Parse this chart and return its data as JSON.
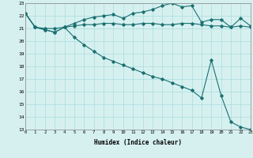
{
  "xlabel": "Humidex (Indice chaleur)",
  "bg_color": "#d6f0f0",
  "line_color": "#1a7070",
  "xlim": [
    0,
    23
  ],
  "ylim": [
    13,
    23
  ],
  "xticks": [
    0,
    1,
    2,
    3,
    4,
    5,
    6,
    7,
    8,
    9,
    10,
    11,
    12,
    13,
    14,
    15,
    16,
    17,
    18,
    19,
    20,
    21,
    22,
    23
  ],
  "yticks": [
    13,
    14,
    15,
    16,
    17,
    18,
    19,
    20,
    21,
    22,
    23
  ],
  "series1_x": [
    0,
    1,
    2,
    3,
    4,
    5,
    6,
    7,
    8,
    9,
    10,
    11,
    12,
    13,
    14,
    15,
    16,
    17,
    18,
    19,
    20,
    21,
    22,
    23
  ],
  "series1_y": [
    22.2,
    21.1,
    20.9,
    20.7,
    21.1,
    21.4,
    21.7,
    21.9,
    22.0,
    22.1,
    21.8,
    22.2,
    22.3,
    22.5,
    22.8,
    23.0,
    22.7,
    22.8,
    21.5,
    21.7,
    21.7,
    21.1,
    21.8,
    21.2
  ],
  "series2_x": [
    0,
    1,
    2,
    3,
    4,
    5,
    6,
    7,
    8,
    9,
    10,
    11,
    12,
    13,
    14,
    15,
    16,
    17,
    18,
    19,
    20,
    21,
    22,
    23
  ],
  "series2_y": [
    22.2,
    21.1,
    21.0,
    21.0,
    21.1,
    21.2,
    21.3,
    21.3,
    21.4,
    21.4,
    21.3,
    21.3,
    21.4,
    21.4,
    21.3,
    21.3,
    21.4,
    21.4,
    21.3,
    21.2,
    21.2,
    21.1,
    21.2,
    21.1
  ],
  "series3_x": [
    0,
    1,
    2,
    3,
    4,
    5,
    6,
    7,
    8,
    9,
    10,
    11,
    12,
    13,
    14,
    15,
    16,
    17,
    18,
    19,
    20,
    21,
    22,
    23
  ],
  "series3_y": [
    22.2,
    21.1,
    20.9,
    20.7,
    21.1,
    20.3,
    19.7,
    19.2,
    18.7,
    18.4,
    18.1,
    17.8,
    17.5,
    17.2,
    17.0,
    16.7,
    16.4,
    16.1,
    15.5,
    18.5,
    15.7,
    13.6,
    13.2,
    13.0
  ]
}
